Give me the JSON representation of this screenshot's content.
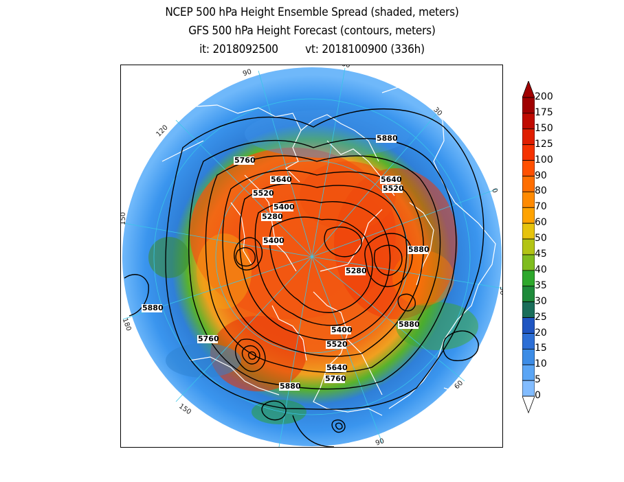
{
  "title": {
    "line1": "NCEP 500 hPa Height Ensemble Spread (shaded, meters)",
    "line2": "GFS 500 hPa Height Forecast (contours, meters)",
    "line3_init": "it: 2018092500",
    "line3_valid": "vt: 2018100900 (336h)"
  },
  "map": {
    "projection": "north-polar-stereographic",
    "longitude_labels": [
      "60",
      "30",
      "0",
      "30",
      "60",
      "90",
      "120",
      "150",
      "180",
      "150",
      "120",
      "90"
    ],
    "contour_labels": [
      "5880",
      "5760",
      "5640",
      "5520",
      "5400",
      "5280",
      "5400",
      "5640",
      "5520",
      "5880",
      "5280",
      "5880",
      "5400",
      "5520",
      "5640",
      "5760",
      "5880",
      "5760",
      "5880"
    ],
    "colors": {
      "coastline": "#ffffff",
      "contour": "#000000",
      "meridian": "#39c6e8"
    }
  },
  "colorbar": {
    "levels": [
      "0",
      "5",
      "10",
      "15",
      "20",
      "25",
      "30",
      "35",
      "40",
      "45",
      "50",
      "60",
      "70",
      "80",
      "90",
      "100",
      "125",
      "150",
      "175",
      "200"
    ],
    "colors": [
      "#a6d4ff",
      "#82bcff",
      "#5aa5f5",
      "#3c8ce6",
      "#2d6fd6",
      "#1f55c2",
      "#1a6e5a",
      "#1e8a3a",
      "#2ea82c",
      "#7fbc1e",
      "#b3c414",
      "#e6c30c",
      "#ffa300",
      "#ff8a00",
      "#ff6e00",
      "#ff5000",
      "#f53200",
      "#e01e00",
      "#c00a00",
      "#a00000"
    ]
  }
}
